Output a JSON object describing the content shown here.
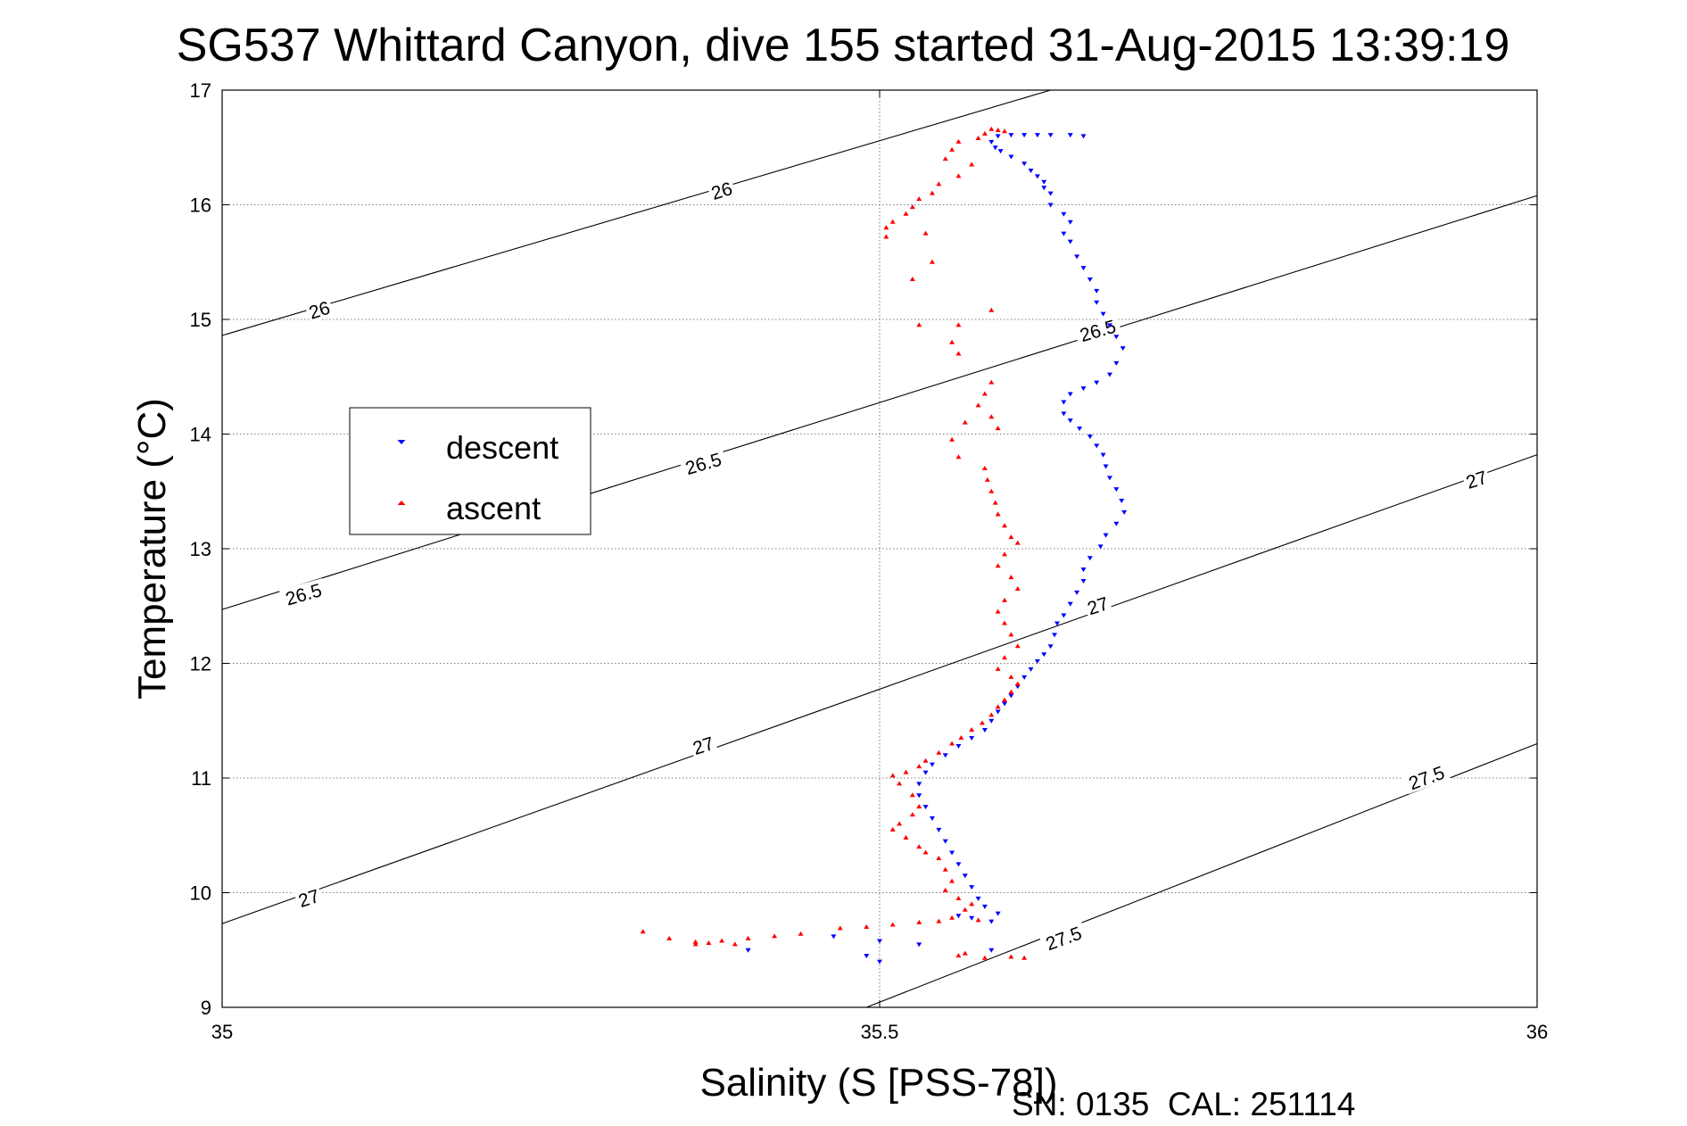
{
  "chart_data": {
    "type": "scatter",
    "title": "SG537 Whittard Canyon, dive 155 started 31-Aug-2015 13:39:19",
    "xlabel": "Salinity (S [PSS-78])",
    "ylabel": "Temperature (°C)",
    "xlim": [
      35,
      36
    ],
    "ylim": [
      9,
      17
    ],
    "xticks": [
      "35",
      "35.5",
      "36"
    ],
    "yticks": [
      "9",
      "10",
      "11",
      "12",
      "13",
      "14",
      "15",
      "16",
      "17"
    ],
    "grid": true,
    "legend_position": "middle-left",
    "footer": "SN: 0135  CAL: 251114",
    "series": [
      {
        "name": "descent",
        "color": "#0000ff",
        "marker": "triangle-down",
        "points": [
          [
            35.59,
            16.6
          ],
          [
            35.6,
            16.61
          ],
          [
            35.61,
            16.61
          ],
          [
            35.62,
            16.61
          ],
          [
            35.63,
            16.61
          ],
          [
            35.645,
            16.61
          ],
          [
            35.655,
            16.6
          ],
          [
            35.585,
            16.55
          ],
          [
            35.588,
            16.5
          ],
          [
            35.592,
            16.47
          ],
          [
            35.6,
            16.42
          ],
          [
            35.61,
            16.36
          ],
          [
            35.615,
            16.3
          ],
          [
            35.62,
            16.25
          ],
          [
            35.625,
            16.15
          ],
          [
            35.63,
            16.1
          ],
          [
            35.625,
            16.2
          ],
          [
            35.63,
            16.0
          ],
          [
            35.64,
            15.92
          ],
          [
            35.645,
            15.85
          ],
          [
            35.64,
            15.75
          ],
          [
            35.645,
            15.68
          ],
          [
            35.65,
            15.55
          ],
          [
            35.655,
            15.45
          ],
          [
            35.66,
            15.35
          ],
          [
            35.665,
            15.25
          ],
          [
            35.665,
            15.15
          ],
          [
            35.67,
            15.05
          ],
          [
            35.675,
            14.95
          ],
          [
            35.68,
            14.85
          ],
          [
            35.685,
            14.75
          ],
          [
            35.68,
            14.62
          ],
          [
            35.675,
            14.52
          ],
          [
            35.665,
            14.45
          ],
          [
            35.655,
            14.4
          ],
          [
            35.645,
            14.35
          ],
          [
            35.64,
            14.28
          ],
          [
            35.64,
            14.18
          ],
          [
            35.645,
            14.12
          ],
          [
            35.652,
            14.05
          ],
          [
            35.66,
            13.98
          ],
          [
            35.665,
            13.9
          ],
          [
            35.67,
            13.82
          ],
          [
            35.672,
            13.72
          ],
          [
            35.675,
            13.62
          ],
          [
            35.68,
            13.52
          ],
          [
            35.684,
            13.42
          ],
          [
            35.686,
            13.32
          ],
          [
            35.68,
            13.22
          ],
          [
            35.672,
            13.12
          ],
          [
            35.668,
            13.02
          ],
          [
            35.66,
            12.92
          ],
          [
            35.655,
            12.82
          ],
          [
            35.655,
            12.72
          ],
          [
            35.65,
            12.62
          ],
          [
            35.645,
            12.52
          ],
          [
            35.64,
            12.42
          ],
          [
            35.635,
            12.35
          ],
          [
            35.633,
            12.25
          ],
          [
            35.63,
            12.15
          ],
          [
            35.625,
            12.08
          ],
          [
            35.62,
            12.02
          ],
          [
            35.615,
            11.95
          ],
          [
            35.61,
            11.88
          ],
          [
            35.605,
            11.8
          ],
          [
            35.6,
            11.72
          ],
          [
            35.595,
            11.65
          ],
          [
            35.59,
            11.58
          ],
          [
            35.585,
            11.5
          ],
          [
            35.58,
            11.42
          ],
          [
            35.57,
            11.35
          ],
          [
            35.56,
            11.28
          ],
          [
            35.55,
            11.2
          ],
          [
            35.54,
            11.12
          ],
          [
            35.535,
            11.05
          ],
          [
            35.53,
            10.95
          ],
          [
            35.53,
            10.85
          ],
          [
            35.535,
            10.75
          ],
          [
            35.54,
            10.65
          ],
          [
            35.545,
            10.55
          ],
          [
            35.55,
            10.45
          ],
          [
            35.555,
            10.35
          ],
          [
            35.56,
            10.25
          ],
          [
            35.565,
            10.15
          ],
          [
            35.57,
            10.05
          ],
          [
            35.575,
            9.95
          ],
          [
            35.58,
            9.88
          ],
          [
            35.59,
            9.82
          ],
          [
            35.585,
            9.75
          ],
          [
            35.57,
            9.78
          ],
          [
            35.56,
            9.8
          ],
          [
            35.465,
            9.62
          ],
          [
            35.5,
            9.58
          ],
          [
            35.53,
            9.55
          ],
          [
            35.4,
            9.5
          ],
          [
            35.49,
            9.45
          ],
          [
            35.5,
            9.4
          ],
          [
            35.585,
            9.5
          ]
        ]
      },
      {
        "name": "ascent",
        "color": "#ff0000",
        "marker": "triangle-up",
        "points": [
          [
            35.585,
            16.66
          ],
          [
            35.59,
            16.65
          ],
          [
            35.595,
            16.64
          ],
          [
            35.58,
            16.62
          ],
          [
            35.575,
            16.58
          ],
          [
            35.56,
            16.55
          ],
          [
            35.555,
            16.48
          ],
          [
            35.55,
            16.4
          ],
          [
            35.57,
            16.35
          ],
          [
            35.56,
            16.25
          ],
          [
            35.545,
            16.18
          ],
          [
            35.54,
            16.1
          ],
          [
            35.53,
            16.05
          ],
          [
            35.525,
            15.98
          ],
          [
            35.52,
            15.92
          ],
          [
            35.51,
            15.85
          ],
          [
            35.505,
            15.8
          ],
          [
            35.535,
            15.75
          ],
          [
            35.505,
            15.72
          ],
          [
            35.54,
            15.5
          ],
          [
            35.525,
            15.35
          ],
          [
            35.53,
            14.95
          ],
          [
            35.56,
            14.95
          ],
          [
            35.585,
            15.08
          ],
          [
            35.555,
            14.8
          ],
          [
            35.56,
            14.7
          ],
          [
            35.585,
            14.45
          ],
          [
            35.58,
            14.35
          ],
          [
            35.575,
            14.25
          ],
          [
            35.585,
            14.15
          ],
          [
            35.59,
            14.05
          ],
          [
            35.565,
            14.1
          ],
          [
            35.555,
            13.95
          ],
          [
            35.56,
            13.8
          ],
          [
            35.58,
            13.7
          ],
          [
            35.582,
            13.6
          ],
          [
            35.585,
            13.5
          ],
          [
            35.588,
            13.4
          ],
          [
            35.59,
            13.3
          ],
          [
            35.595,
            13.2
          ],
          [
            35.6,
            13.1
          ],
          [
            35.605,
            13.05
          ],
          [
            35.595,
            12.95
          ],
          [
            35.59,
            12.85
          ],
          [
            35.6,
            12.75
          ],
          [
            35.605,
            12.65
          ],
          [
            35.595,
            12.55
          ],
          [
            35.59,
            12.45
          ],
          [
            35.595,
            12.35
          ],
          [
            35.6,
            12.25
          ],
          [
            35.605,
            12.15
          ],
          [
            35.595,
            12.05
          ],
          [
            35.59,
            11.95
          ],
          [
            35.6,
            11.88
          ],
          [
            35.605,
            11.82
          ],
          [
            35.6,
            11.75
          ],
          [
            35.595,
            11.68
          ],
          [
            35.59,
            11.62
          ],
          [
            35.585,
            11.55
          ],
          [
            35.578,
            11.48
          ],
          [
            35.57,
            11.42
          ],
          [
            35.562,
            11.35
          ],
          [
            35.555,
            11.3
          ],
          [
            35.545,
            11.22
          ],
          [
            35.535,
            11.15
          ],
          [
            35.53,
            11.1
          ],
          [
            35.52,
            11.05
          ],
          [
            35.51,
            11.02
          ],
          [
            35.515,
            10.95
          ],
          [
            35.525,
            10.85
          ],
          [
            35.53,
            10.75
          ],
          [
            35.525,
            10.68
          ],
          [
            35.515,
            10.6
          ],
          [
            35.51,
            10.55
          ],
          [
            35.52,
            10.48
          ],
          [
            35.53,
            10.4
          ],
          [
            35.535,
            10.35
          ],
          [
            35.545,
            10.3
          ],
          [
            35.55,
            10.2
          ],
          [
            35.555,
            10.1
          ],
          [
            35.55,
            10.02
          ],
          [
            35.56,
            9.95
          ],
          [
            35.57,
            9.9
          ],
          [
            35.565,
            9.85
          ],
          [
            35.555,
            9.78
          ],
          [
            35.575,
            9.76
          ],
          [
            35.545,
            9.75
          ],
          [
            35.53,
            9.74
          ],
          [
            35.51,
            9.72
          ],
          [
            35.49,
            9.7
          ],
          [
            35.47,
            9.69
          ],
          [
            35.44,
            9.64
          ],
          [
            35.42,
            9.62
          ],
          [
            35.4,
            9.6
          ],
          [
            35.38,
            9.58
          ],
          [
            35.36,
            9.57
          ],
          [
            35.34,
            9.6
          ],
          [
            35.32,
            9.66
          ],
          [
            35.37,
            9.56
          ],
          [
            35.39,
            9.55
          ],
          [
            35.36,
            9.55
          ],
          [
            35.56,
            9.45
          ],
          [
            35.58,
            9.43
          ],
          [
            35.6,
            9.44
          ],
          [
            35.61,
            9.43
          ],
          [
            35.565,
            9.47
          ]
        ]
      }
    ],
    "contours": [
      {
        "label": "26",
        "from": [
          35,
          14.86
        ],
        "to": [
          35.63,
          17
        ]
      },
      {
        "label": "26.5",
        "from": [
          35,
          12.47
        ],
        "to": [
          36,
          16.08
        ]
      },
      {
        "label": "27",
        "from": [
          35,
          9.73
        ],
        "to": [
          36,
          13.82
        ]
      },
      {
        "label": "27.5",
        "from": [
          35.49,
          9
        ],
        "to": [
          36,
          11.3
        ]
      }
    ],
    "contour_labels": [
      {
        "text": "26",
        "at": [
          35.38,
          16.12
        ],
        "angle": -17
      },
      {
        "text": "26",
        "at": [
          35.074,
          15.08
        ],
        "angle": -17
      },
      {
        "text": "26.5",
        "at": [
          35.666,
          14.9
        ],
        "angle": -16
      },
      {
        "text": "26.5",
        "at": [
          35.366,
          13.74
        ],
        "angle": -16
      },
      {
        "text": "26.5",
        "at": [
          35.062,
          12.6
        ],
        "angle": -16
      },
      {
        "text": "27",
        "at": [
          35.954,
          13.6
        ],
        "angle": -18
      },
      {
        "text": "27",
        "at": [
          35.666,
          12.5
        ],
        "angle": -18
      },
      {
        "text": "27",
        "at": [
          35.366,
          11.28
        ],
        "angle": -18
      },
      {
        "text": "27",
        "at": [
          35.066,
          9.95
        ],
        "angle": -18
      },
      {
        "text": "27.5",
        "at": [
          35.916,
          11.0
        ],
        "angle": -20
      },
      {
        "text": "27.5",
        "at": [
          35.64,
          9.6
        ],
        "angle": -20
      }
    ]
  }
}
